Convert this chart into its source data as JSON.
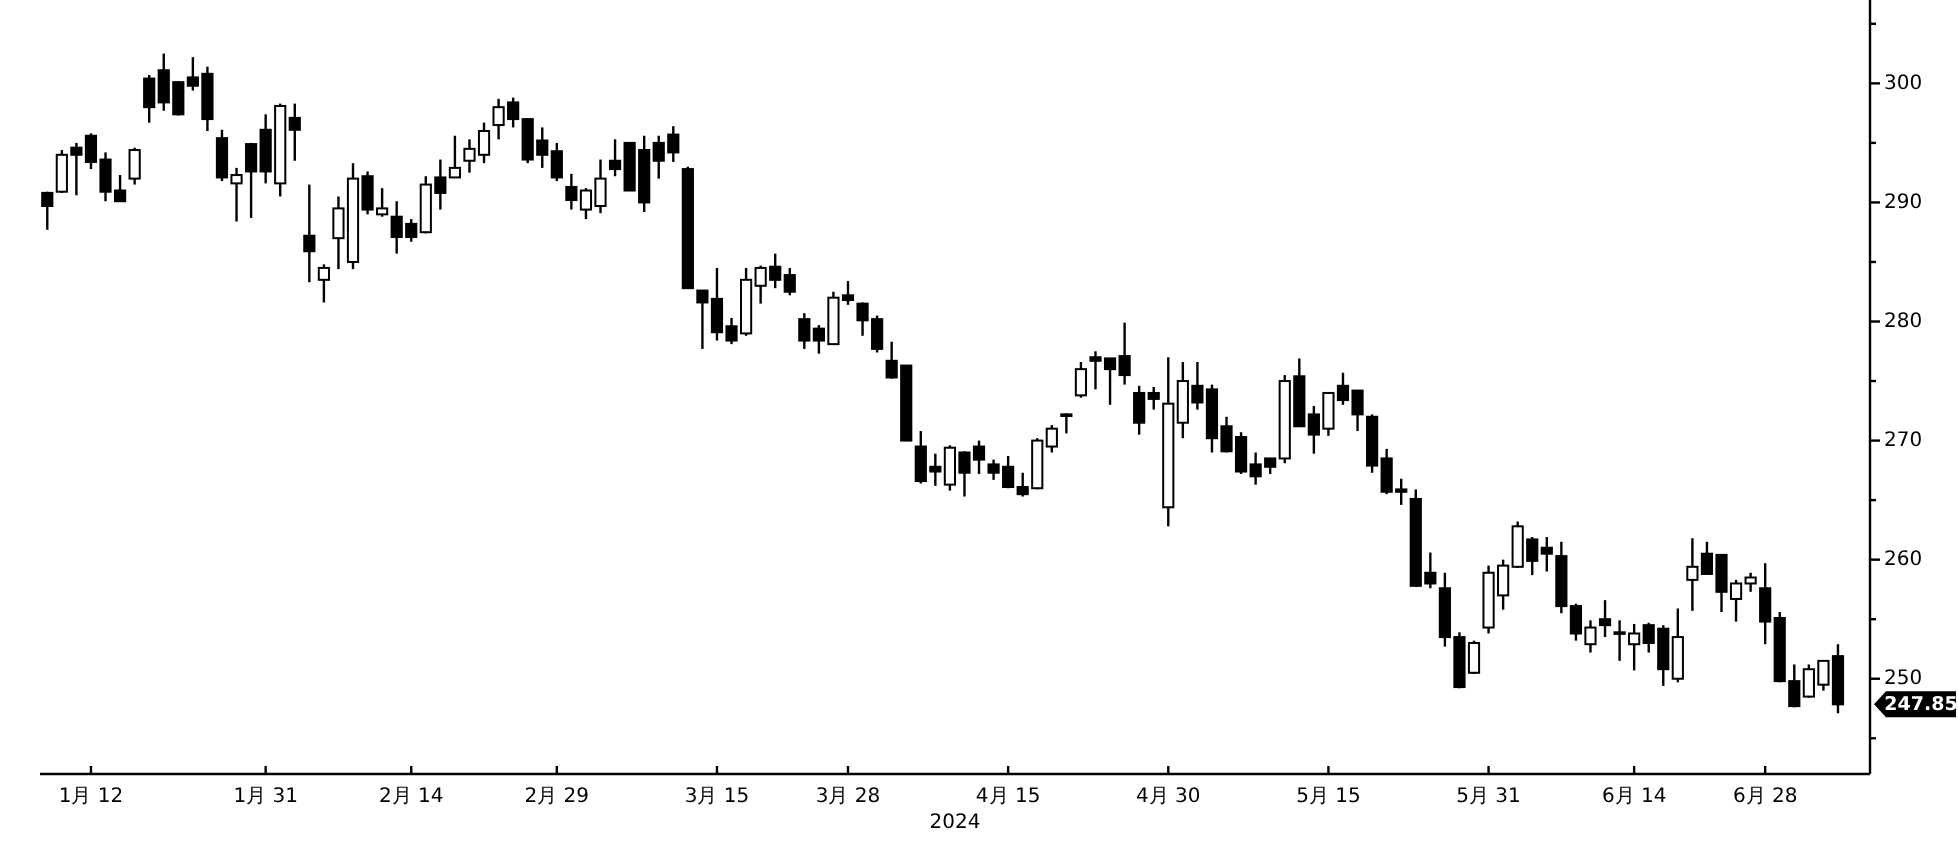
{
  "chart_data": {
    "type": "candlestick",
    "xlabel": "2024",
    "color": "#000000",
    "ylim": [
      242,
      307
    ],
    "yticks": [
      {
        "value": 245,
        "label": null
      },
      250,
      {
        "value": 255,
        "label": null
      },
      260,
      {
        "value": 265,
        "label": null
      },
      270,
      {
        "value": 275,
        "label": null
      },
      280,
      {
        "value": 285,
        "label": null
      },
      290,
      {
        "value": 295,
        "label": null
      },
      300,
      {
        "value": 305,
        "label": null
      }
    ],
    "categories": [
      null,
      null,
      null,
      "1月 12",
      null,
      null,
      null,
      null,
      null,
      null,
      null,
      null,
      null,
      null,
      null,
      "1月 31",
      null,
      null,
      null,
      null,
      null,
      null,
      null,
      null,
      null,
      "2月 14",
      null,
      null,
      null,
      null,
      null,
      null,
      null,
      null,
      null,
      "2月 29",
      null,
      null,
      null,
      null,
      null,
      null,
      null,
      null,
      null,
      null,
      "3月 15",
      null,
      null,
      null,
      null,
      null,
      null,
      null,
      null,
      "3月 28",
      null,
      null,
      null,
      null,
      null,
      null,
      null,
      null,
      null,
      null,
      "4月 15",
      null,
      null,
      null,
      null,
      null,
      null,
      null,
      null,
      null,
      null,
      "4月 30",
      null,
      null,
      null,
      null,
      null,
      null,
      null,
      null,
      null,
      null,
      "5月 15",
      null,
      null,
      null,
      null,
      null,
      null,
      null,
      null,
      null,
      null,
      "5月 31",
      null,
      null,
      null,
      null,
      null,
      null,
      null,
      null,
      null,
      "6月 14",
      null,
      null,
      null,
      null,
      null,
      null,
      null,
      null,
      "6月 28",
      null,
      null,
      null,
      null,
      null
    ],
    "ohlc": [
      [
        290.8,
        290.9,
        287.7,
        289.7
      ],
      [
        290.9,
        294.4,
        290.8,
        294.0
      ],
      [
        294.6,
        295.0,
        290.6,
        294.0
      ],
      [
        295.6,
        295.8,
        292.8,
        293.4
      ],
      [
        293.6,
        294.2,
        290.1,
        290.9
      ],
      [
        291.0,
        292.3,
        290.1,
        290.1
      ],
      [
        292.0,
        294.6,
        291.5,
        294.4
      ],
      [
        300.4,
        300.7,
        296.7,
        298.0
      ],
      [
        301.1,
        302.5,
        297.7,
        298.4
      ],
      [
        300.1,
        300.2,
        297.3,
        297.4
      ],
      [
        300.5,
        302.2,
        299.4,
        299.8
      ],
      [
        300.8,
        301.4,
        296.0,
        297.0
      ],
      [
        295.4,
        296.1,
        291.8,
        292.1
      ],
      [
        291.6,
        292.9,
        288.4,
        292.3
      ],
      [
        294.9,
        295.0,
        288.7,
        292.6
      ],
      [
        296.1,
        297.4,
        291.6,
        292.6
      ],
      [
        291.6,
        298.3,
        290.5,
        298.1
      ],
      [
        297.1,
        298.3,
        293.5,
        296.1
      ],
      [
        287.2,
        291.5,
        283.3,
        285.9
      ],
      [
        283.5,
        284.8,
        281.6,
        284.5
      ],
      [
        287.0,
        290.5,
        284.4,
        289.5
      ],
      [
        285.0,
        293.3,
        284.4,
        292.0
      ],
      [
        292.2,
        292.6,
        289.0,
        289.4
      ],
      [
        289.0,
        291.2,
        288.8,
        289.5
      ],
      [
        288.8,
        290.1,
        285.7,
        287.1
      ],
      [
        288.2,
        288.6,
        286.7,
        287.1
      ],
      [
        287.5,
        292.2,
        287.4,
        291.5
      ],
      [
        292.1,
        293.6,
        289.4,
        290.8
      ],
      [
        292.1,
        295.6,
        292.1,
        292.9
      ],
      [
        293.5,
        295.3,
        292.5,
        294.5
      ],
      [
        294.0,
        296.7,
        293.3,
        296.0
      ],
      [
        296.5,
        298.7,
        295.3,
        298.0
      ],
      [
        298.4,
        298.8,
        296.3,
        297.0
      ],
      [
        297.0,
        297.0,
        293.3,
        293.6
      ],
      [
        295.2,
        296.3,
        292.9,
        294.0
      ],
      [
        294.3,
        295.0,
        291.8,
        292.1
      ],
      [
        291.3,
        292.4,
        289.4,
        290.2
      ],
      [
        289.4,
        291.2,
        288.6,
        291.0
      ],
      [
        289.7,
        293.6,
        289.1,
        292.0
      ],
      [
        293.5,
        295.3,
        292.2,
        292.8
      ],
      [
        295.0,
        295.0,
        291.0,
        291.0
      ],
      [
        294.4,
        295.6,
        289.2,
        290.0
      ],
      [
        295.0,
        295.6,
        292.0,
        293.5
      ],
      [
        295.7,
        296.4,
        293.4,
        294.2
      ],
      [
        292.8,
        293.0,
        282.8,
        282.8
      ],
      [
        282.6,
        282.6,
        277.7,
        281.6
      ],
      [
        281.9,
        284.5,
        278.4,
        279.1
      ],
      [
        279.6,
        280.3,
        278.1,
        278.4
      ],
      [
        279.0,
        284.5,
        278.8,
        283.5
      ],
      [
        283.0,
        284.7,
        281.5,
        284.5
      ],
      [
        284.6,
        285.7,
        282.8,
        283.5
      ],
      [
        283.9,
        284.5,
        282.2,
        282.5
      ],
      [
        280.2,
        280.7,
        277.7,
        278.4
      ],
      [
        279.4,
        279.7,
        277.3,
        278.4
      ],
      [
        278.1,
        282.5,
        278.1,
        282.0
      ],
      [
        282.2,
        283.4,
        281.4,
        281.8
      ],
      [
        281.5,
        281.6,
        278.8,
        280.1
      ],
      [
        280.2,
        280.5,
        277.4,
        277.7
      ],
      [
        276.7,
        278.3,
        275.2,
        275.3
      ],
      [
        276.3,
        276.3,
        270.0,
        270.0
      ],
      [
        269.5,
        270.8,
        266.4,
        266.6
      ],
      [
        267.8,
        268.9,
        266.2,
        267.4
      ],
      [
        266.3,
        269.6,
        265.8,
        269.4
      ],
      [
        269.0,
        269.1,
        265.3,
        267.3
      ],
      [
        269.5,
        270.0,
        267.2,
        268.4
      ],
      [
        268.0,
        268.4,
        266.7,
        267.3
      ],
      [
        267.8,
        268.7,
        266.0,
        266.1
      ],
      [
        266.1,
        267.3,
        265.3,
        265.5
      ],
      [
        266.0,
        270.2,
        265.9,
        270.0
      ],
      [
        269.5,
        271.3,
        269.0,
        271.0
      ],
      [
        272.1,
        272.3,
        270.6,
        272.2
      ],
      [
        273.8,
        276.6,
        273.6,
        276.0
      ],
      [
        277.0,
        277.5,
        274.3,
        276.7
      ],
      [
        276.9,
        276.9,
        273.0,
        276.0
      ],
      [
        277.1,
        279.9,
        274.7,
        275.5
      ],
      [
        274.0,
        274.6,
        270.5,
        271.5
      ],
      [
        274.0,
        274.5,
        272.6,
        273.5
      ],
      [
        264.4,
        277.0,
        262.8,
        273.1
      ],
      [
        271.5,
        276.6,
        270.2,
        275.0
      ],
      [
        274.6,
        276.6,
        272.6,
        273.2
      ],
      [
        274.3,
        274.7,
        269.0,
        270.2
      ],
      [
        271.2,
        272.0,
        269.0,
        269.1
      ],
      [
        270.3,
        270.7,
        267.2,
        267.4
      ],
      [
        268.0,
        269.0,
        266.3,
        267.0
      ],
      [
        268.5,
        268.5,
        267.2,
        267.8
      ],
      [
        268.5,
        275.5,
        268.1,
        275.0
      ],
      [
        275.4,
        276.9,
        271.2,
        271.2
      ],
      [
        272.2,
        272.9,
        268.9,
        270.5
      ],
      [
        271.0,
        274.0,
        270.4,
        274.0
      ],
      [
        274.6,
        275.7,
        273.0,
        273.4
      ],
      [
        274.2,
        274.2,
        270.8,
        272.2
      ],
      [
        272.0,
        272.2,
        267.3,
        267.9
      ],
      [
        268.5,
        269.3,
        265.5,
        265.7
      ],
      [
        265.9,
        266.8,
        264.6,
        265.7
      ],
      [
        265.1,
        265.9,
        257.7,
        257.8
      ],
      [
        258.9,
        260.6,
        257.6,
        258.0
      ],
      [
        257.6,
        258.9,
        252.7,
        253.5
      ],
      [
        253.5,
        253.9,
        249.2,
        249.3
      ],
      [
        250.5,
        253.2,
        250.4,
        253.0
      ],
      [
        254.3,
        259.5,
        253.8,
        258.9
      ],
      [
        257.0,
        260.0,
        255.8,
        259.5
      ],
      [
        259.4,
        263.2,
        259.3,
        262.8
      ],
      [
        261.7,
        261.9,
        258.7,
        259.9
      ],
      [
        261.0,
        261.9,
        259.0,
        260.5
      ],
      [
        260.3,
        261.5,
        255.5,
        256.1
      ],
      [
        256.1,
        256.3,
        253.2,
        253.8
      ],
      [
        252.9,
        254.9,
        252.2,
        254.3
      ],
      [
        255.0,
        256.6,
        253.5,
        254.5
      ],
      [
        253.9,
        254.9,
        251.5,
        253.8
      ],
      [
        252.9,
        254.6,
        250.7,
        253.8
      ],
      [
        254.5,
        254.7,
        252.2,
        253.0
      ],
      [
        254.2,
        254.5,
        249.4,
        250.8
      ],
      [
        250.0,
        255.9,
        249.7,
        253.5
      ],
      [
        258.3,
        261.8,
        255.7,
        259.4
      ],
      [
        260.5,
        261.5,
        258.8,
        258.8
      ],
      [
        260.4,
        260.4,
        255.6,
        257.3
      ],
      [
        256.7,
        258.3,
        254.8,
        258.0
      ],
      [
        258.0,
        258.9,
        257.3,
        258.5
      ],
      [
        257.6,
        259.7,
        252.9,
        254.8
      ],
      [
        255.1,
        255.6,
        249.7,
        249.8
      ],
      [
        249.8,
        251.2,
        247.6,
        247.7
      ],
      [
        248.5,
        251.2,
        248.4,
        250.8
      ],
      [
        249.5,
        251.5,
        249.0,
        251.5
      ],
      [
        251.9,
        252.9,
        247.1,
        247.85
      ]
    ],
    "annotations": [
      "247.85"
    ]
  }
}
